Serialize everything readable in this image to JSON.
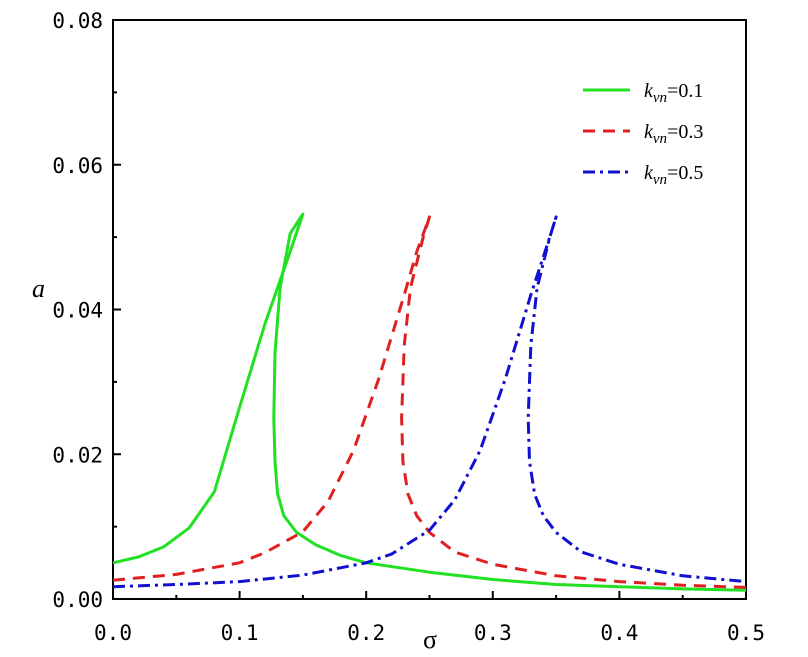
{
  "chart_data": {
    "type": "line",
    "title": "",
    "xlabel": "σ",
    "ylabel": "a",
    "xlim": [
      0.0,
      0.5
    ],
    "ylim": [
      0.0,
      0.08
    ],
    "xticks": [
      "0.0",
      "0.1",
      "0.2",
      "0.3",
      "0.4",
      "0.5"
    ],
    "yticks": [
      "0.00",
      "0.02",
      "0.04",
      "0.06",
      "0.08"
    ],
    "grid": false,
    "legend_position": "top-right",
    "series": [
      {
        "name": "k_vn=0.1",
        "legend_base": "k",
        "legend_sub": "vn",
        "legend_value": "=0.1",
        "color": "#22e022",
        "dash": "solid",
        "x": [
          0.0,
          0.02,
          0.04,
          0.06,
          0.08,
          0.1,
          0.12,
          0.14,
          0.15,
          0.14,
          0.132,
          0.128,
          0.127,
          0.128,
          0.13,
          0.135,
          0.145,
          0.16,
          0.18,
          0.2,
          0.25,
          0.3,
          0.35,
          0.4,
          0.45,
          0.5
        ],
        "y": [
          0.005,
          0.0058,
          0.0072,
          0.0098,
          0.0148,
          0.0265,
          0.038,
          0.048,
          0.0532,
          0.0505,
          0.043,
          0.034,
          0.025,
          0.019,
          0.0145,
          0.0115,
          0.0092,
          0.0075,
          0.006,
          0.005,
          0.0037,
          0.0027,
          0.002,
          0.0017,
          0.0014,
          0.0012
        ]
      },
      {
        "name": "k_vn=0.3",
        "legend_base": "k",
        "legend_sub": "vn",
        "legend_value": "=0.3",
        "color": "#e02020",
        "dash": "dashed",
        "x": [
          0.0,
          0.05,
          0.1,
          0.12,
          0.15,
          0.17,
          0.19,
          0.21,
          0.23,
          0.24,
          0.25,
          0.245,
          0.235,
          0.23,
          0.228,
          0.229,
          0.233,
          0.24,
          0.25,
          0.27,
          0.3,
          0.35,
          0.4,
          0.45,
          0.5
        ],
        "y": [
          0.0026,
          0.0034,
          0.005,
          0.0064,
          0.0093,
          0.0135,
          0.0205,
          0.0305,
          0.042,
          0.048,
          0.0528,
          0.05,
          0.043,
          0.035,
          0.025,
          0.019,
          0.0145,
          0.0115,
          0.0092,
          0.0065,
          0.0048,
          0.0032,
          0.0024,
          0.0019,
          0.0016
        ]
      },
      {
        "name": "k_vn=0.5",
        "legend_base": "k",
        "legend_sub": "vn",
        "legend_value": "=0.5",
        "color": "#1010d0",
        "dash": "dash-dot",
        "x": [
          0.0,
          0.05,
          0.1,
          0.15,
          0.2,
          0.22,
          0.25,
          0.27,
          0.29,
          0.31,
          0.33,
          0.345,
          0.35,
          0.345,
          0.335,
          0.33,
          0.328,
          0.329,
          0.333,
          0.34,
          0.35,
          0.37,
          0.4,
          0.45,
          0.5
        ],
        "y": [
          0.0017,
          0.002,
          0.0024,
          0.0033,
          0.005,
          0.0062,
          0.0095,
          0.0137,
          0.0205,
          0.0305,
          0.042,
          0.05,
          0.0528,
          0.05,
          0.043,
          0.035,
          0.025,
          0.019,
          0.0145,
          0.0115,
          0.0092,
          0.0065,
          0.0048,
          0.0032,
          0.0024
        ]
      }
    ]
  }
}
